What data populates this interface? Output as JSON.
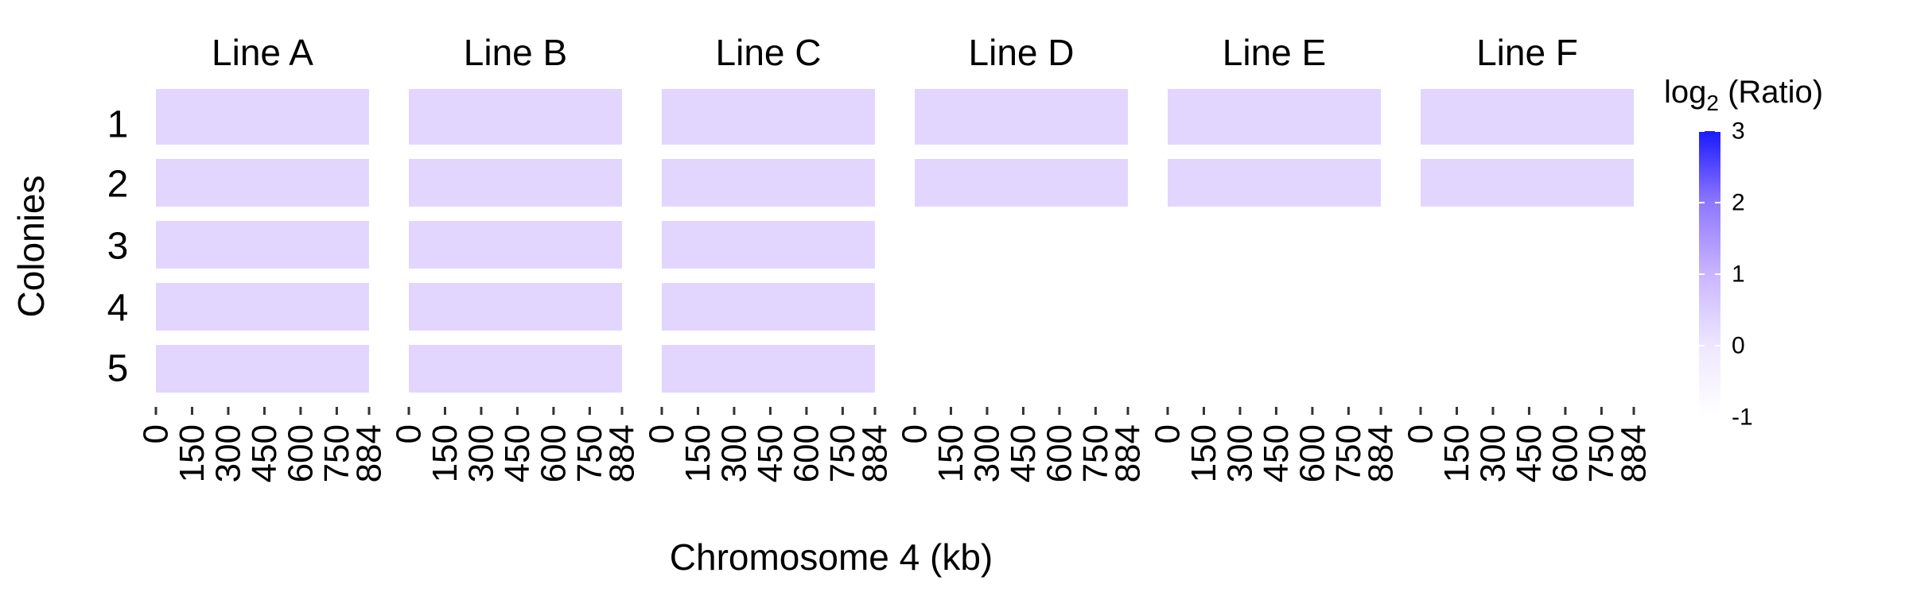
{
  "chart_data": {
    "type": "heatmap",
    "title": "",
    "xlabel": "Chromosome 4 (kb)",
    "ylabel": "Colonies",
    "facets": [
      {
        "label": "Line A",
        "colonies": [
          1,
          2,
          3,
          4,
          5
        ]
      },
      {
        "label": "Line B",
        "colonies": [
          1,
          2,
          3,
          4,
          5
        ]
      },
      {
        "label": "Line C",
        "colonies": [
          1,
          2,
          3,
          4,
          5
        ]
      },
      {
        "label": "Line D",
        "colonies": [
          1,
          2
        ]
      },
      {
        "label": "Line E",
        "colonies": [
          1,
          2
        ]
      },
      {
        "label": "Line F",
        "colonies": [
          1,
          2
        ]
      }
    ],
    "row_labels": [
      "1",
      "2",
      "3",
      "4",
      "5"
    ],
    "x_ticks": [
      0,
      150,
      300,
      450,
      600,
      750,
      884
    ],
    "x_tick_labels": [
      "0",
      "150",
      "300",
      "450",
      "600",
      "750",
      "884"
    ],
    "xlim": [
      0,
      884
    ],
    "approx_value_all_cells": 0,
    "legend": {
      "title_main": "log",
      "title_sub": "2",
      "title_rest": " (Ratio)",
      "ticks": [
        3,
        2,
        1,
        0,
        -1
      ],
      "tick_labels": [
        "3",
        "2",
        "1",
        "0",
        "-1"
      ],
      "range": [
        -1,
        3
      ],
      "placement": "right",
      "color_low": "#ffffff",
      "color_high": "#1a1aff"
    },
    "cell_color": "#e2d6ff"
  }
}
